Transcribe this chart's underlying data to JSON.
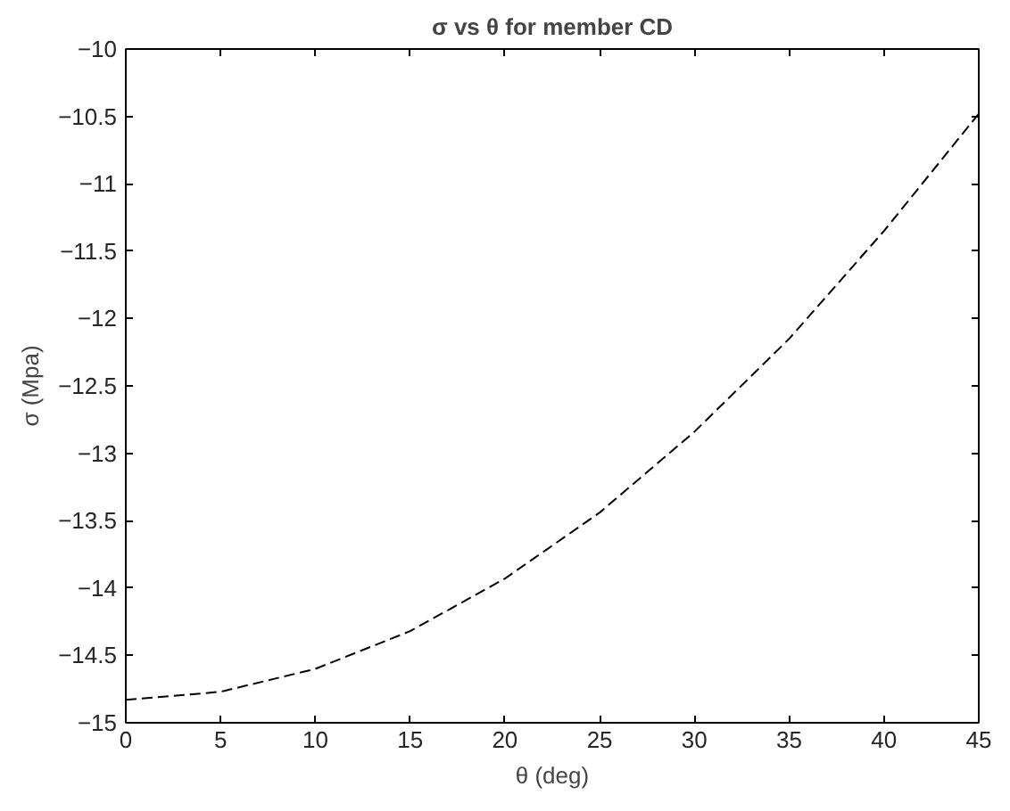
{
  "chart_data": {
    "type": "line",
    "title": "σ vs θ for member CD",
    "xlabel": "θ (deg)",
    "ylabel": "σ (Mpa)",
    "x": [
      0,
      5,
      10,
      15,
      20,
      25,
      30,
      35,
      40,
      45
    ],
    "series": [
      {
        "color": "#000000",
        "values": [
          -14.83,
          -14.77,
          -14.6,
          -14.32,
          -13.93,
          -13.44,
          -12.84,
          -12.15,
          -11.35,
          -10.48
        ]
      }
    ],
    "xlim": [
      0,
      45
    ],
    "ylim": [
      -15,
      -10
    ],
    "xticks": [
      0,
      5,
      10,
      15,
      20,
      25,
      30,
      35,
      40,
      45
    ],
    "yticks": [
      -15,
      -14.5,
      -14,
      -13.5,
      -13,
      -12.5,
      -12,
      -11.5,
      -11,
      -10.5,
      -10
    ],
    "grid": false,
    "marker": "none",
    "line_style": "dashed"
  }
}
